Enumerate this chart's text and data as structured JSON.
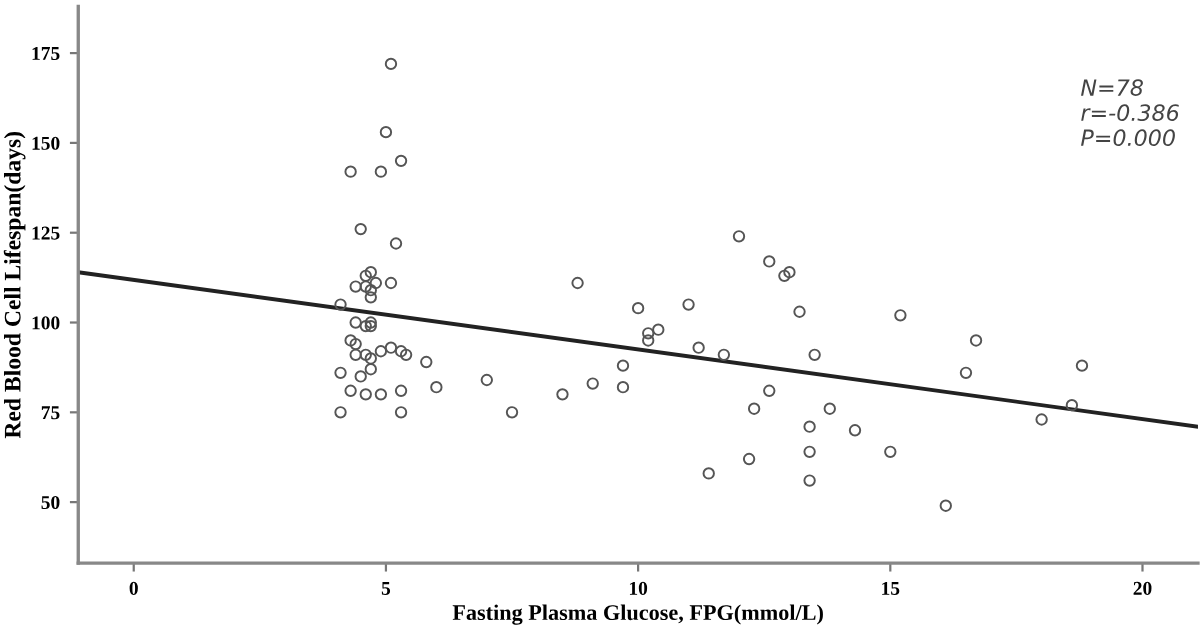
{
  "chart_data": {
    "type": "scatter",
    "xlabel": "Fasting Plasma Glucose, FPG(mmol/L)",
    "ylabel": "Red Blood Cell Lifespan(days)",
    "xlim": [
      -1.1,
      21.1
    ],
    "ylim": [
      33,
      188
    ],
    "xticks": [
      0,
      5,
      10,
      15,
      20
    ],
    "yticks": [
      50,
      75,
      100,
      125,
      150,
      175
    ],
    "grid": false,
    "annotations": [
      "N=78",
      "r=-0.386",
      "P=0.000"
    ],
    "series": [
      {
        "color": "#555555",
        "marker": "circle",
        "x": [
          5.1,
          5.0,
          5.3,
          4.3,
          4.9,
          4.5,
          5.2,
          4.7,
          4.6,
          4.4,
          4.6,
          4.8,
          5.1,
          4.7,
          4.7,
          4.1,
          4.4,
          4.6,
          4.7,
          4.7,
          4.3,
          4.4,
          4.4,
          4.6,
          4.7,
          4.9,
          5.1,
          5.3,
          5.4,
          4.7,
          4.1,
          4.5,
          5.8,
          4.3,
          4.6,
          4.9,
          5.3,
          6.0,
          7.0,
          4.1,
          5.3,
          7.5,
          8.5,
          9.1,
          8.8,
          9.7,
          9.7,
          10.0,
          10.2,
          10.2,
          10.4,
          11.0,
          11.2,
          11.7,
          11.4,
          12.0,
          12.6,
          12.9,
          13.0,
          12.3,
          12.6,
          12.2,
          13.2,
          13.5,
          13.4,
          13.4,
          13.4,
          13.8,
          14.3,
          15.0,
          15.2,
          16.1,
          16.5,
          16.7,
          18.0,
          18.6,
          18.8
        ],
        "values": [
          172,
          153,
          145,
          142,
          142,
          126,
          122,
          114,
          113,
          110,
          110,
          111,
          111,
          109,
          107,
          105,
          100,
          99,
          99,
          100,
          95,
          94,
          91,
          91,
          90,
          92,
          93,
          92,
          91,
          87,
          86,
          85,
          89,
          81,
          80,
          80,
          81,
          82,
          84,
          75,
          75,
          75,
          80,
          83,
          111,
          88,
          82,
          104,
          95,
          97,
          98,
          105,
          93,
          91,
          58,
          124,
          117,
          113,
          114,
          76,
          81,
          62,
          103,
          91,
          71,
          64,
          56,
          76,
          70,
          64,
          102,
          49,
          86,
          95,
          73,
          77,
          88
        ]
      },
      {
        "type": "line",
        "color": "#222222",
        "x": [
          -1.1,
          21.1
        ],
        "values": [
          114,
          71
        ]
      }
    ]
  }
}
